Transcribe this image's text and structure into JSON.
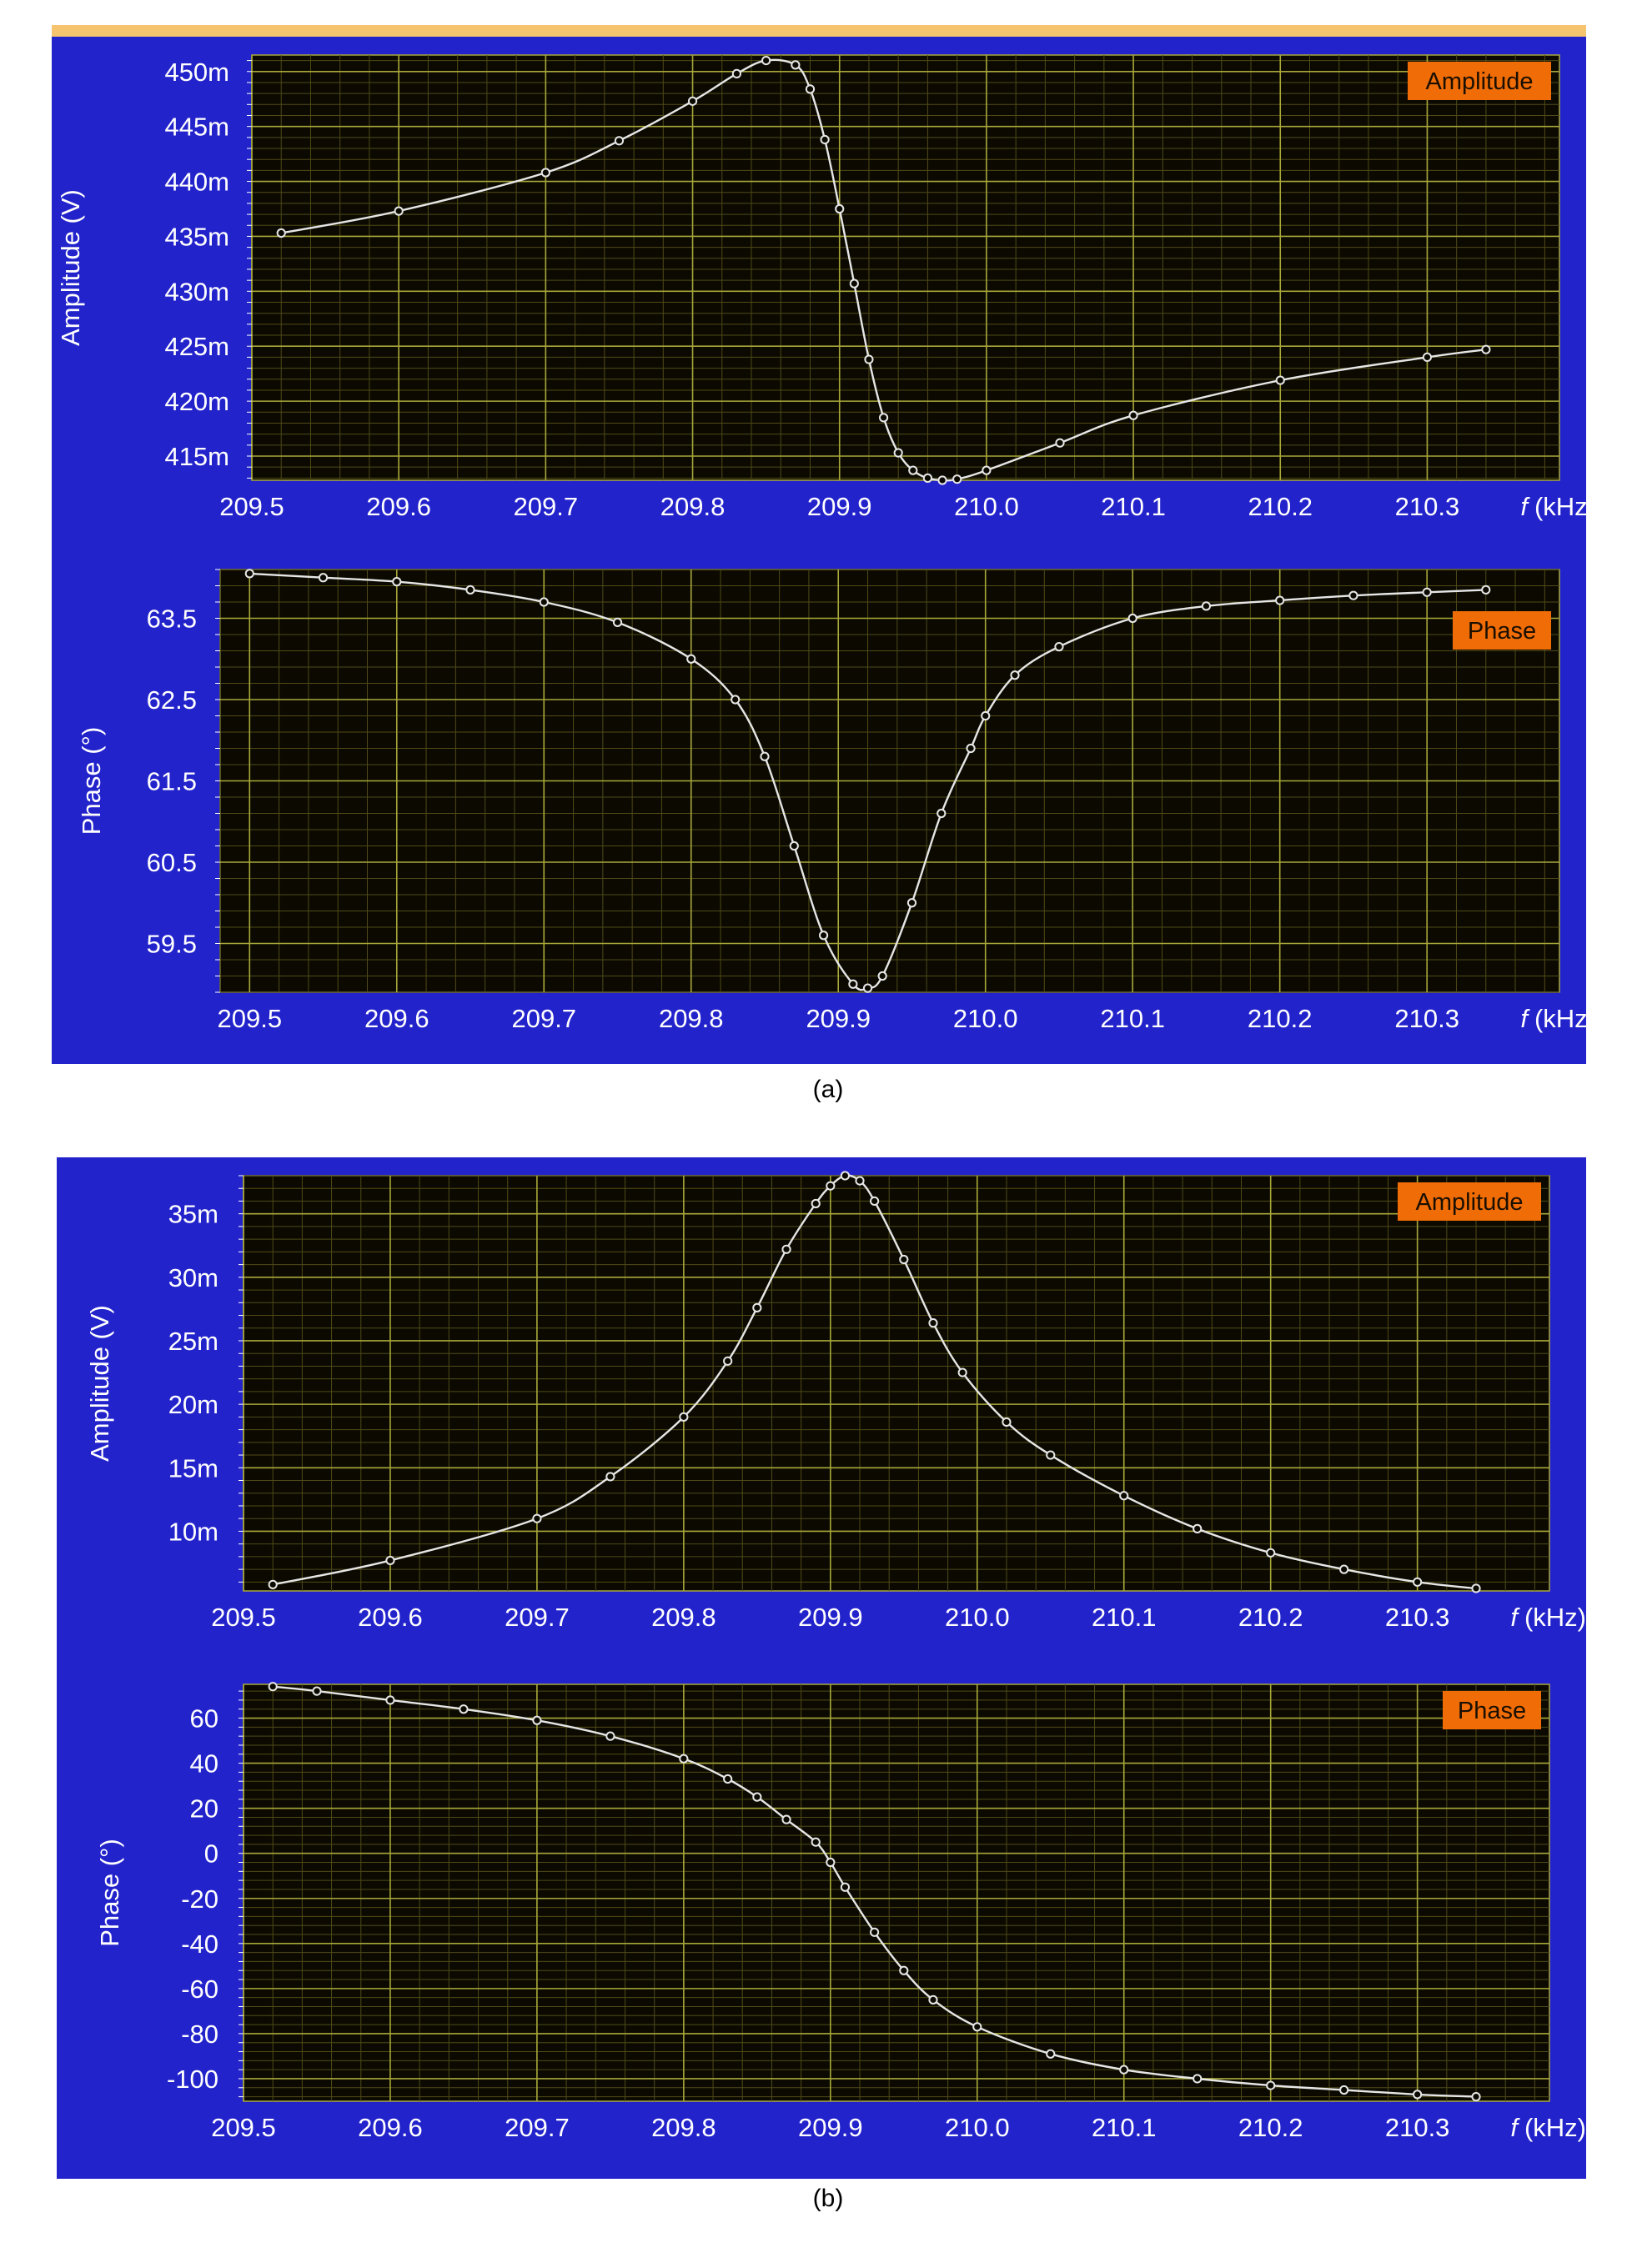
{
  "figure": {
    "caption_a": "(a)",
    "caption_b": "(b)"
  },
  "colors": {
    "panel_bg": "#2323cc",
    "plot_bg": "#0c0a00",
    "grid_major": "#a8a83a",
    "grid_minor": "#4e4a18",
    "trace": "#e6e6e6",
    "badge": "#ef6c06",
    "top_bar": "#f6c36e"
  },
  "chart_data": [
    {
      "id": "a-amplitude",
      "type": "line",
      "legend": "Amplitude",
      "ylabel": "Amplitude (V)",
      "xlabel_var": "f",
      "xlabel_unit": "(kHz)",
      "xlim": [
        209.5,
        210.39
      ],
      "ylim": [
        412.8,
        451.5
      ],
      "xticks": [
        209.5,
        209.6,
        209.7,
        209.8,
        209.9,
        210.0,
        210.1,
        210.2,
        210.3
      ],
      "xtick_labels": [
        "209.5",
        "209.6",
        "209.7",
        "209.8",
        "209.9",
        "210.0",
        "210.1",
        "210.2",
        "210.3"
      ],
      "yticks": [
        415,
        420,
        425,
        430,
        435,
        440,
        445,
        450
      ],
      "ytick_labels": [
        "415m",
        "420m",
        "425m",
        "430m",
        "435m",
        "440m",
        "445m",
        "450m"
      ],
      "unit_multiplier": "m",
      "series": [
        {
          "x": [
            209.52,
            209.6,
            209.7,
            209.75,
            209.8,
            209.83,
            209.85,
            209.87,
            209.88,
            209.89,
            209.9,
            209.91,
            209.92,
            209.93,
            209.94,
            209.95,
            209.96,
            209.97,
            209.98,
            210.0,
            210.05,
            210.1,
            210.2,
            210.3,
            210.34
          ],
          "y": [
            435.3,
            437.3,
            440.8,
            443.7,
            447.3,
            449.8,
            451.0,
            450.6,
            448.4,
            443.8,
            437.5,
            430.7,
            423.8,
            418.5,
            415.3,
            413.7,
            413.0,
            412.8,
            412.9,
            413.7,
            416.2,
            418.7,
            421.9,
            424.0,
            424.7
          ]
        }
      ]
    },
    {
      "id": "a-phase",
      "type": "line",
      "legend": "Phase",
      "ylabel": "Phase (°)",
      "xlabel_var": "f",
      "xlabel_unit": "(kHz)",
      "xlim": [
        209.48,
        210.39
      ],
      "ylim": [
        58.9,
        64.1
      ],
      "xticks": [
        209.5,
        209.6,
        209.7,
        209.8,
        209.9,
        210.0,
        210.1,
        210.2,
        210.3
      ],
      "xtick_labels": [
        "209.5",
        "209.6",
        "209.7",
        "209.8",
        "209.9",
        "210.0",
        "210.1",
        "210.2",
        "210.3"
      ],
      "yticks": [
        59.5,
        60.5,
        61.5,
        62.5,
        63.5
      ],
      "ytick_labels": [
        "59.5",
        "60.5",
        "61.5",
        "62.5",
        "63.5"
      ],
      "series": [
        {
          "x": [
            209.5,
            209.55,
            209.6,
            209.65,
            209.7,
            209.75,
            209.8,
            209.83,
            209.85,
            209.87,
            209.89,
            209.91,
            209.92,
            209.93,
            209.95,
            209.97,
            209.99,
            210.0,
            210.02,
            210.05,
            210.1,
            210.15,
            210.2,
            210.25,
            210.3,
            210.34
          ],
          "y": [
            64.05,
            64.0,
            63.95,
            63.85,
            63.7,
            63.45,
            63.0,
            62.5,
            61.8,
            60.7,
            59.6,
            59.0,
            58.95,
            59.1,
            60.0,
            61.1,
            61.9,
            62.3,
            62.8,
            63.15,
            63.5,
            63.65,
            63.72,
            63.78,
            63.82,
            63.85
          ]
        }
      ]
    },
    {
      "id": "b-amplitude",
      "type": "line",
      "legend": "Amplitude",
      "ylabel": "Amplitude (V)",
      "xlabel_var": "f",
      "xlabel_unit": "(kHz)",
      "xlim": [
        209.5,
        210.39
      ],
      "ylim": [
        5.3,
        38.0
      ],
      "xticks": [
        209.5,
        209.6,
        209.7,
        209.8,
        209.9,
        210.0,
        210.1,
        210.2,
        210.3
      ],
      "xtick_labels": [
        "209.5",
        "209.6",
        "209.7",
        "209.8",
        "209.9",
        "210.0",
        "210.1",
        "210.2",
        "210.3"
      ],
      "yticks": [
        10,
        15,
        20,
        25,
        30,
        35
      ],
      "ytick_labels": [
        "10m",
        "15m",
        "20m",
        "25m",
        "30m",
        "35m"
      ],
      "unit_multiplier": "m",
      "series": [
        {
          "x": [
            209.52,
            209.6,
            209.7,
            209.75,
            209.8,
            209.83,
            209.85,
            209.87,
            209.89,
            209.9,
            209.91,
            209.92,
            209.93,
            209.95,
            209.97,
            209.99,
            210.02,
            210.05,
            210.1,
            210.15,
            210.2,
            210.25,
            210.3,
            210.34
          ],
          "y": [
            5.8,
            7.7,
            11.0,
            14.3,
            19.0,
            23.4,
            27.6,
            32.2,
            35.8,
            37.2,
            38.0,
            37.6,
            36.0,
            31.4,
            26.4,
            22.5,
            18.6,
            16.0,
            12.8,
            10.2,
            8.3,
            7.0,
            6.0,
            5.5
          ]
        }
      ]
    },
    {
      "id": "b-phase",
      "type": "line",
      "legend": "Phase",
      "ylabel": "Phase (°)",
      "xlabel_var": "f",
      "xlabel_unit": "(kHz)",
      "xlim": [
        209.5,
        210.39
      ],
      "ylim": [
        -110,
        75
      ],
      "xticks": [
        209.5,
        209.6,
        209.7,
        209.8,
        209.9,
        210.0,
        210.1,
        210.2,
        210.3
      ],
      "xtick_labels": [
        "209.5",
        "209.6",
        "209.7",
        "209.8",
        "209.9",
        "210.0",
        "210.1",
        "210.2",
        "210.3"
      ],
      "yticks": [
        -100,
        -80,
        -60,
        -40,
        -20,
        0,
        20,
        40,
        60
      ],
      "ytick_labels": [
        "-100",
        "-80",
        "-60",
        "-40",
        "-20",
        "0",
        "20",
        "40",
        "60"
      ],
      "series": [
        {
          "x": [
            209.52,
            209.55,
            209.6,
            209.65,
            209.7,
            209.75,
            209.8,
            209.83,
            209.85,
            209.87,
            209.89,
            209.9,
            209.91,
            209.93,
            209.95,
            209.97,
            210.0,
            210.05,
            210.1,
            210.15,
            210.2,
            210.25,
            210.3,
            210.34
          ],
          "y": [
            74,
            72,
            68,
            64,
            59,
            52,
            42,
            33,
            25,
            15,
            5,
            -4,
            -15,
            -35,
            -52,
            -65,
            -77,
            -89,
            -96,
            -100,
            -103,
            -105,
            -107,
            -108
          ]
        }
      ]
    }
  ]
}
